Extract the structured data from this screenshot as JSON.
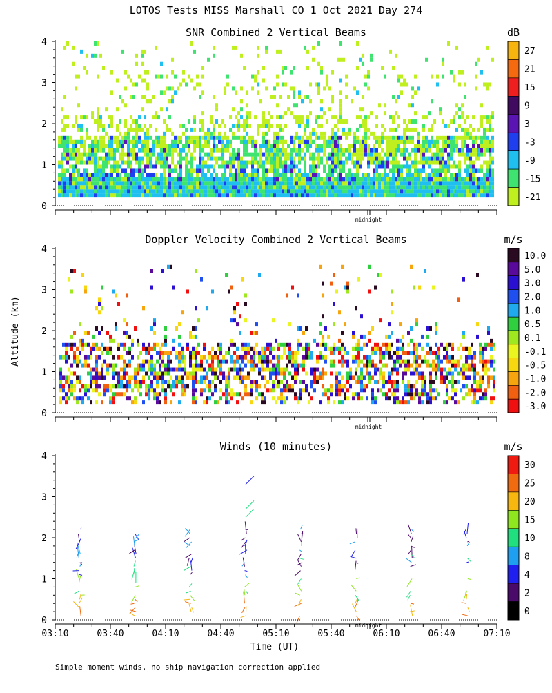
{
  "page": {
    "title": "LOTOS Tests MISS Marshall CO   1 Oct 2021 Day 274",
    "y_axis_label": "Altitude (km)",
    "x_axis_label": "Time (UT)",
    "footnote": "Simple moment winds, no ship navigation correction applied",
    "midnight_label": "midnight",
    "time_ticks": [
      "03:10",
      "03:40",
      "04:10",
      "04:40",
      "05:10",
      "05:40",
      "06:10",
      "06:40",
      "07:10"
    ]
  },
  "chart_data": [
    {
      "type": "heatmap",
      "title": "SNR Combined 2 Vertical Beams",
      "xlabel": "",
      "ylabel": "Altitude (km)",
      "x_range_minutes": [
        0,
        240
      ],
      "ylim": [
        0,
        4
      ],
      "y_ticks": [
        0,
        1,
        2,
        3,
        4
      ],
      "colorbar": {
        "unit": "dB",
        "levels": [
          -21,
          -15,
          -9,
          -3,
          3,
          9,
          15,
          21,
          27
        ],
        "colors": [
          "#bfef1f",
          "#3fe36f",
          "#1fbfef",
          "#1f3fef",
          "#5a14b4",
          "#3f0a5f",
          "#ef1f1f",
          "#f56a0f",
          "#f7b40f"
        ]
      }
    },
    {
      "type": "heatmap",
      "title": "Doppler Velocity Combined 2 Vertical Beams",
      "xlabel": "",
      "ylabel": "Altitude (km)",
      "x_range_minutes": [
        0,
        240
      ],
      "ylim": [
        0,
        4
      ],
      "y_ticks": [
        0,
        1,
        2,
        3,
        4
      ],
      "colorbar": {
        "unit": "m/s",
        "levels": [
          "10.0",
          "5.0",
          "3.0",
          "2.0",
          "1.0",
          "0.5",
          "0.1",
          "-0.1",
          "-0.5",
          "-1.0",
          "-2.0",
          "-3.0"
        ],
        "colors": [
          "#2a0a20",
          "#5a0a9a",
          "#2a10d0",
          "#1f50ef",
          "#1fa9ef",
          "#2fcf3f",
          "#9fe71f",
          "#eaf41f",
          "#f7d70f",
          "#f7a50f",
          "#f06010",
          "#f01010"
        ]
      }
    },
    {
      "type": "scatter",
      "title": "Winds (10 minutes)",
      "xlabel": "Time (UT)",
      "ylabel": "Altitude (km)",
      "x_range_minutes": [
        0,
        240
      ],
      "ylim": [
        0,
        4
      ],
      "y_ticks": [
        0,
        1,
        2,
        3,
        4
      ],
      "colorbar": {
        "unit": "m/s",
        "levels": [
          0,
          2,
          4,
          8,
          10,
          15,
          20,
          25,
          30
        ],
        "colors": [
          "#000000",
          "#4a0a6a",
          "#1f1fef",
          "#1f9fef",
          "#1fdf7f",
          "#8fe71f",
          "#f7b70f",
          "#f06a10",
          "#f01a10"
        ]
      },
      "profile_times_minutes": [
        15,
        45,
        75,
        105,
        135,
        165,
        195,
        225
      ]
    }
  ],
  "icons": {
    "midnight_marker": "double-tick-icon"
  }
}
